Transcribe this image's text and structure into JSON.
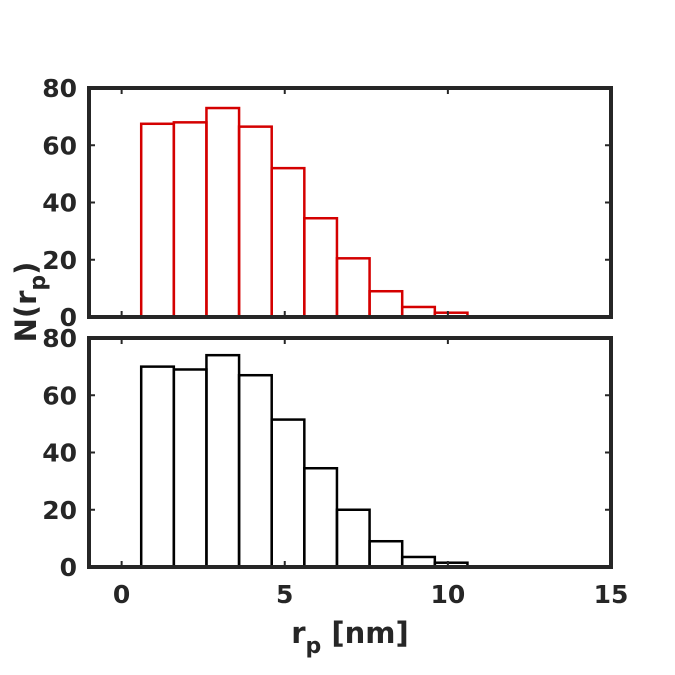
{
  "chart_data": [
    {
      "type": "bar",
      "panel": "top",
      "series": [
        {
          "color": "#d40000",
          "bins": [
            [
              0.6,
              1.6
            ],
            [
              1.6,
              2.6
            ],
            [
              2.6,
              3.6
            ],
            [
              3.6,
              4.6
            ],
            [
              4.6,
              5.6
            ],
            [
              5.6,
              6.6
            ],
            [
              6.6,
              7.6
            ],
            [
              7.6,
              8.6
            ],
            [
              8.6,
              9.6
            ],
            [
              9.6,
              10.6
            ]
          ],
          "values": [
            67.5,
            68,
            73,
            66.5,
            52,
            34.5,
            20.5,
            9,
            3.5,
            1.5
          ]
        }
      ],
      "xlim": [
        -1,
        15
      ],
      "ylim": [
        0,
        80
      ],
      "yticks": [
        0,
        20,
        40,
        60,
        80
      ],
      "ytick_labels": [
        "0",
        "20",
        "40",
        "60",
        "80"
      ],
      "xticks": [
        0,
        5,
        10,
        15
      ],
      "grid": false
    },
    {
      "type": "bar",
      "panel": "bottom",
      "series": [
        {
          "color": "#000000",
          "bins": [
            [
              0.6,
              1.6
            ],
            [
              1.6,
              2.6
            ],
            [
              2.6,
              3.6
            ],
            [
              3.6,
              4.6
            ],
            [
              4.6,
              5.6
            ],
            [
              5.6,
              6.6
            ],
            [
              6.6,
              7.6
            ],
            [
              7.6,
              8.6
            ],
            [
              8.6,
              9.6
            ],
            [
              9.6,
              10.6
            ]
          ],
          "values": [
            70,
            69,
            74,
            67,
            51.5,
            34.5,
            20,
            9,
            3.5,
            1.5
          ]
        }
      ],
      "xlim": [
        -1,
        15
      ],
      "ylim": [
        0,
        80
      ],
      "yticks": [
        0,
        20,
        40,
        60,
        80
      ],
      "ytick_labels": [
        "0",
        "20",
        "40",
        "60",
        "80"
      ],
      "xticks": [
        0,
        5,
        10,
        15
      ],
      "xtick_labels": [
        "0",
        "5",
        "10",
        "15"
      ],
      "grid": false
    }
  ],
  "labels": {
    "ylabel_main": "N(r",
    "ylabel_sub": "p",
    "ylabel_close": ")",
    "xlabel_main": "r",
    "xlabel_sub": "p",
    "xlabel_rest": " [nm]"
  }
}
